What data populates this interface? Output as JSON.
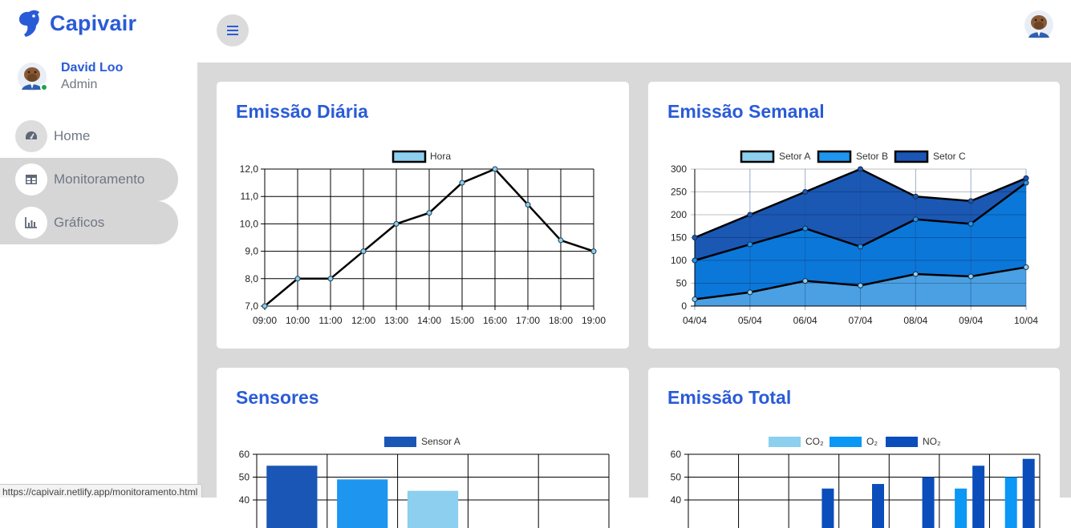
{
  "brand": {
    "name": "Capivair"
  },
  "user": {
    "name": "David Loo",
    "role": "Admin"
  },
  "nav": [
    {
      "label": "Home",
      "icon": "gauge-icon",
      "active": false
    },
    {
      "label": "Monitoramento",
      "icon": "table-icon",
      "active": true
    },
    {
      "label": "Gráficos",
      "icon": "bar-chart-icon",
      "active": true
    }
  ],
  "status_url": "https://capivair.netlify.app/monitoramento.html",
  "colors": {
    "accent": "#2a5bd7",
    "light": "#8ccfee",
    "mid": "#1e96f0",
    "dark": "#1a56b5",
    "navy": "#0d47a1"
  },
  "cards": {
    "daily": {
      "title": "Emissão Diária"
    },
    "weekly": {
      "title": "Emissão Semanal"
    },
    "sensors": {
      "title": "Sensores"
    },
    "total": {
      "title": "Emissão Total"
    }
  },
  "chart_data": [
    {
      "id": "daily",
      "type": "line",
      "x": [
        "09:00",
        "10:00",
        "11:00",
        "12:00",
        "13:00",
        "14:00",
        "15:00",
        "16:00",
        "17:00",
        "18:00",
        "19:00"
      ],
      "series": [
        {
          "name": "Hora",
          "values": [
            7.0,
            8.0,
            8.0,
            9.0,
            10.0,
            10.4,
            11.5,
            12.0,
            10.7,
            9.4,
            9.0
          ]
        }
      ],
      "ylim": [
        7,
        12
      ],
      "yticks": [
        "7,0",
        "8,0",
        "9,0",
        "10,0",
        "11,0",
        "12,0"
      ],
      "legend": "top"
    },
    {
      "id": "weekly",
      "type": "area",
      "x": [
        "04/04",
        "05/04",
        "06/04",
        "07/04",
        "08/04",
        "09/04",
        "10/04"
      ],
      "series": [
        {
          "name": "Setor A",
          "values": [
            15,
            30,
            55,
            45,
            70,
            65,
            85
          ]
        },
        {
          "name": "Setor B",
          "values": [
            100,
            135,
            170,
            130,
            190,
            180,
            270
          ]
        },
        {
          "name": "Setor C",
          "values": [
            150,
            200,
            250,
            300,
            240,
            230,
            280
          ]
        }
      ],
      "ylim": [
        0,
        300
      ],
      "yticks": [
        "0",
        "50",
        "100",
        "150",
        "200",
        "250",
        "300"
      ],
      "legend": "top"
    },
    {
      "id": "sensors",
      "type": "bar",
      "series": [
        {
          "name": "Sensor A",
          "values": [
            55,
            49,
            44
          ]
        }
      ],
      "ylim": [
        0,
        60
      ],
      "yticks": [
        "60",
        "50",
        "40"
      ],
      "legend": "top"
    },
    {
      "id": "total",
      "type": "bar",
      "series": [
        {
          "name": "CO₂",
          "values": []
        },
        {
          "name": "O₂",
          "values": [
            null,
            null,
            null,
            null,
            null,
            45,
            50
          ]
        },
        {
          "name": "NO₂",
          "values": [
            null,
            null,
            45,
            47,
            50,
            55,
            58
          ]
        }
      ],
      "ylim": [
        0,
        60
      ],
      "yticks": [
        "60",
        "50",
        "40"
      ],
      "legend": "top"
    }
  ]
}
